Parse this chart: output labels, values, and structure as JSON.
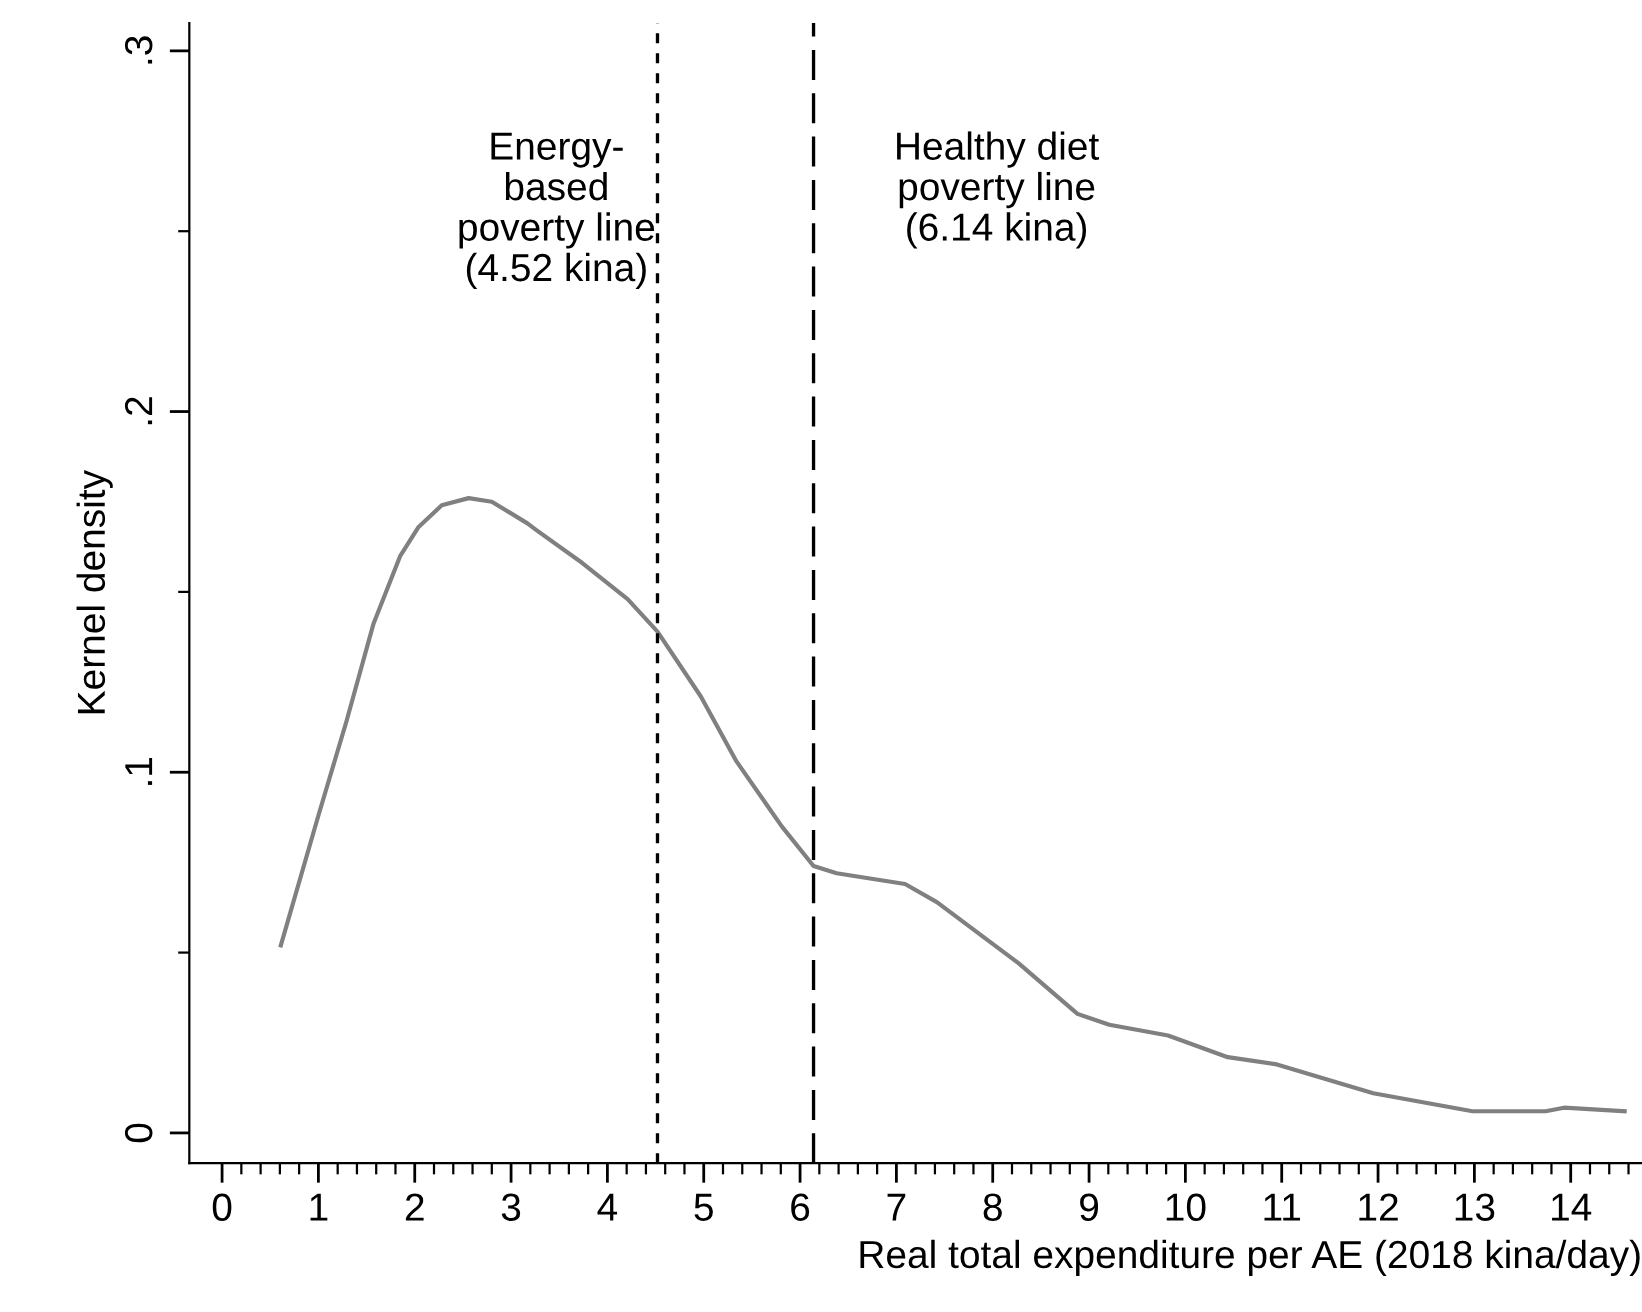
{
  "chart_data": {
    "type": "line",
    "xlabel": "Real total expenditure per AE (2018 kina/day)",
    "ylabel": "Kernel density",
    "xlim": [
      -0.34,
      14.74
    ],
    "ylim": [
      -0.0084,
      0.3077
    ],
    "xticks": [
      0,
      1,
      2,
      3,
      4,
      5,
      6,
      7,
      8,
      9,
      10,
      11,
      12,
      13,
      14,
      {
        "value": 0.2,
        "label": null
      },
      {
        "value": 0.4,
        "label": null
      },
      {
        "value": 0.6,
        "label": null
      },
      {
        "value": 0.8,
        "label": null
      },
      {
        "value": 1.2,
        "label": null
      },
      {
        "value": 1.4,
        "label": null
      },
      {
        "value": 1.6,
        "label": null
      },
      {
        "value": 1.8,
        "label": null
      },
      {
        "value": 2.2,
        "label": null
      },
      {
        "value": 2.4,
        "label": null
      },
      {
        "value": 2.6,
        "label": null
      },
      {
        "value": 2.8,
        "label": null
      },
      {
        "value": 3.2,
        "label": null
      },
      {
        "value": 3.4,
        "label": null
      },
      {
        "value": 3.6,
        "label": null
      },
      {
        "value": 3.8,
        "label": null
      },
      {
        "value": 4.2,
        "label": null
      },
      {
        "value": 4.4,
        "label": null
      },
      {
        "value": 4.6,
        "label": null
      },
      {
        "value": 4.8,
        "label": null
      },
      {
        "value": 5.2,
        "label": null
      },
      {
        "value": 5.4,
        "label": null
      },
      {
        "value": 5.6,
        "label": null
      },
      {
        "value": 5.8,
        "label": null
      },
      {
        "value": 6.2,
        "label": null
      },
      {
        "value": 6.4,
        "label": null
      },
      {
        "value": 6.6,
        "label": null
      },
      {
        "value": 6.8,
        "label": null
      },
      {
        "value": 7.2,
        "label": null
      },
      {
        "value": 7.4,
        "label": null
      },
      {
        "value": 7.6,
        "label": null
      },
      {
        "value": 7.8,
        "label": null
      },
      {
        "value": 8.2,
        "label": null
      },
      {
        "value": 8.4,
        "label": null
      },
      {
        "value": 8.6,
        "label": null
      },
      {
        "value": 8.8,
        "label": null
      },
      {
        "value": 9.2,
        "label": null
      },
      {
        "value": 9.4,
        "label": null
      },
      {
        "value": 9.6,
        "label": null
      },
      {
        "value": 9.8,
        "label": null
      },
      {
        "value": 10.2,
        "label": null
      },
      {
        "value": 10.4,
        "label": null
      },
      {
        "value": 10.6,
        "label": null
      },
      {
        "value": 10.8,
        "label": null
      },
      {
        "value": 11.2,
        "label": null
      },
      {
        "value": 11.4,
        "label": null
      },
      {
        "value": 11.6,
        "label": null
      },
      {
        "value": 11.8,
        "label": null
      },
      {
        "value": 12.2,
        "label": null
      },
      {
        "value": 12.4,
        "label": null
      },
      {
        "value": 12.6,
        "label": null
      },
      {
        "value": 12.8,
        "label": null
      },
      {
        "value": 13.2,
        "label": null
      },
      {
        "value": 13.4,
        "label": null
      },
      {
        "value": 13.6,
        "label": null
      },
      {
        "value": 13.8,
        "label": null
      },
      {
        "value": 14.2,
        "label": null
      },
      {
        "value": 14.4,
        "label": null
      },
      {
        "value": 14.6,
        "label": null
      }
    ],
    "yticks": [
      0,
      {
        "value": 0.1,
        "label": ".1"
      },
      {
        "value": 0.2,
        "label": ".2"
      },
      {
        "value": 0.3,
        "label": ".3"
      },
      {
        "value": 0.05,
        "label": null
      },
      {
        "value": 0.15,
        "label": null
      },
      {
        "value": 0.25,
        "label": null
      }
    ],
    "line_style": "solid",
    "series": [
      {
        "color": "#808080",
        "x": [
          0.61,
          1.0,
          1.29,
          1.57,
          1.85,
          2.04,
          2.28,
          2.56,
          2.8,
          3.17,
          3.27,
          3.74,
          4.21,
          4.52,
          4.97,
          5.34,
          5.81,
          6.14,
          6.38,
          7.09,
          7.42,
          8.27,
          8.88,
          9.21,
          9.82,
          10.44,
          10.95,
          11.95,
          12.98,
          13.74,
          13.93,
          14.56
        ],
        "values": [
          0.052,
          0.088,
          0.114,
          0.141,
          0.16,
          0.168,
          0.174,
          0.176,
          0.175,
          0.169,
          0.167,
          0.158,
          0.148,
          0.139,
          0.121,
          0.103,
          0.085,
          0.074,
          0.072,
          0.069,
          0.064,
          0.047,
          0.033,
          0.03,
          0.027,
          0.021,
          0.019,
          0.011,
          0.006,
          0.006,
          0.007,
          0.006
        ]
      }
    ],
    "ref_lines": [
      {
        "axis": "x",
        "value": 4.52,
        "label": "Energy-\nbased\npoverty line\n(4.52 kina)",
        "color": "#000000",
        "line_style": "dotted"
      },
      {
        "axis": "x",
        "value": 6.14,
        "label": "Healthy diet\npoverty line\n(6.14 kina)",
        "color": "#000000",
        "line_style": "dashed"
      }
    ]
  }
}
